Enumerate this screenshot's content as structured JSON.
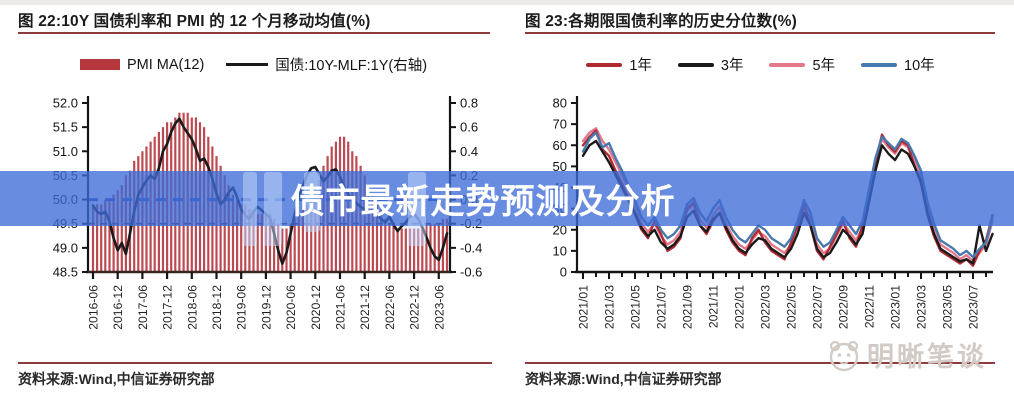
{
  "banner": {
    "text": "债市最新走势预测及分析",
    "bg_color": "rgba(62,108,214,0.78)",
    "text_color": "#ffffff"
  },
  "watermark": {
    "text": "明晰笔谈"
  },
  "left_panel": {
    "title": "图 22:10Y 国债利率和 PMI 的 12 个月移动均值(%)",
    "source": "资料来源:Wind,中信证券研究部"
  },
  "right_panel": {
    "title": "图 23:各期限国债利率的历史分位数(%)",
    "source": "资料来源:Wind,中信证券研究部"
  },
  "chart_data": [
    {
      "type": "bar",
      "title": "10Y 国债利率和 PMI 的 12 个月移动均值(%)",
      "x_tick_labels": [
        "2016-06",
        "2016-12",
        "2017-06",
        "2017-12",
        "2018-06",
        "2018-12",
        "2019-06",
        "2019-12",
        "2020-06",
        "2020-12",
        "2021-06",
        "2021-12",
        "2022-06",
        "2022-12",
        "2023-06"
      ],
      "left_axis": {
        "min": 48.5,
        "max": 52.0,
        "tick_labels": [
          "52.0",
          "51.5",
          "51.0",
          "50.5",
          "50.0",
          "49.5",
          "49.0",
          "48.5"
        ]
      },
      "right_axis": {
        "min": -0.6,
        "max": 0.8,
        "tick_labels": [
          "0.8",
          "0.6",
          "0.4",
          "0.2",
          "0.0",
          "-0.2",
          "-0.4",
          "-0.6"
        ]
      },
      "bars": {
        "name": "PMI MA(12)",
        "color": "#b5373e",
        "axis": "left",
        "values": [
          49.9,
          49.9,
          49.9,
          50.0,
          50.0,
          50.1,
          50.2,
          50.3,
          50.5,
          50.6,
          50.8,
          50.9,
          51.0,
          51.1,
          51.2,
          51.3,
          51.4,
          51.5,
          51.6,
          51.6,
          51.7,
          51.8,
          51.8,
          51.8,
          51.7,
          51.7,
          51.6,
          51.5,
          51.3,
          51.1,
          50.9,
          50.7,
          50.5,
          50.3,
          50.1,
          50.0,
          49.9,
          49.9,
          49.8,
          49.8,
          49.7,
          49.7,
          49.7,
          49.7,
          49.6,
          49.5,
          49.4,
          49.4,
          49.5,
          49.6,
          49.7,
          49.8,
          49.9,
          50.0,
          50.2,
          50.4,
          50.7,
          50.9,
          51.1,
          51.2,
          51.3,
          51.3,
          51.2,
          51.0,
          50.9,
          50.7,
          50.5,
          50.3,
          50.1,
          49.9,
          49.8,
          49.6,
          49.5,
          49.5,
          49.4,
          49.4,
          49.4,
          49.4,
          49.4,
          49.4,
          49.4,
          49.5,
          49.5,
          49.5,
          49.5,
          49.6,
          49.6
        ]
      },
      "line": {
        "name": "国债:10Y-MLF:1Y(右轴)",
        "color": "#1a1a1a",
        "axis": "right",
        "values": [
          -0.05,
          -0.1,
          -0.12,
          -0.1,
          -0.18,
          -0.32,
          -0.42,
          -0.36,
          -0.45,
          -0.28,
          -0.1,
          0.04,
          0.1,
          0.16,
          0.2,
          0.17,
          0.26,
          0.4,
          0.46,
          0.56,
          0.63,
          0.67,
          0.6,
          0.55,
          0.5,
          0.42,
          0.32,
          0.34,
          0.27,
          0.17,
          0.05,
          -0.04,
          0.0,
          0.06,
          0.1,
          0.02,
          -0.08,
          -0.13,
          -0.16,
          -0.1,
          -0.06,
          -0.09,
          -0.12,
          -0.15,
          -0.28,
          -0.42,
          -0.53,
          -0.44,
          -0.28,
          -0.12,
          0.02,
          0.12,
          0.2,
          0.26,
          0.27,
          0.21,
          0.15,
          0.19,
          0.24,
          0.25,
          0.19,
          0.11,
          0.04,
          0.0,
          -0.03,
          -0.06,
          -0.08,
          -0.11,
          -0.08,
          -0.13,
          -0.16,
          -0.19,
          -0.14,
          -0.21,
          -0.26,
          -0.22,
          -0.19,
          -0.14,
          -0.12,
          -0.16,
          -0.23,
          -0.31,
          -0.4,
          -0.47,
          -0.5,
          -0.4,
          -0.28
        ]
      },
      "reference_lines": [
        {
          "axis": "right",
          "value": 0.0,
          "color": "#2b55c0",
          "width": 3,
          "dash": "10 7"
        },
        {
          "axis": "right",
          "value": -0.2,
          "color": "#2a3a7a",
          "width": 1.6,
          "dash": "7 5"
        }
      ]
    },
    {
      "type": "line",
      "title": "各期限国债利率的历史分位数(%)",
      "x_tick_labels": [
        "2021/01",
        "2021/03",
        "2021/05",
        "2021/07",
        "2021/09",
        "2021/11",
        "2022/01",
        "2022/03",
        "2022/05",
        "2022/07",
        "2022/09",
        "2022/11",
        "2023/01",
        "2023/03",
        "2023/05",
        "2023/07"
      ],
      "y_axis": {
        "min": 0,
        "max": 80,
        "tick_labels": [
          "80",
          "70",
          "60",
          "50",
          "40",
          "30",
          "20",
          "10",
          "0"
        ]
      },
      "series": [
        {
          "name": "1年",
          "color": "#b02a33",
          "values": [
            60,
            64,
            67,
            58,
            55,
            48,
            42,
            35,
            27,
            20,
            16,
            24,
            18,
            10,
            12,
            16,
            30,
            33,
            22,
            18,
            24,
            28,
            20,
            14,
            10,
            8,
            16,
            20,
            14,
            10,
            8,
            6,
            14,
            22,
            32,
            22,
            10,
            6,
            12,
            18,
            24,
            16,
            12,
            22,
            38,
            52,
            65,
            60,
            57,
            62,
            60,
            50,
            42,
            27,
            17,
            10,
            8,
            6,
            4,
            6,
            3,
            10,
            15,
            27
          ]
        },
        {
          "name": "3年",
          "color": "#1a1a1a",
          "values": [
            55,
            60,
            62,
            57,
            52,
            46,
            40,
            34,
            28,
            21,
            17,
            20,
            14,
            11,
            13,
            17,
            26,
            29,
            22,
            19,
            25,
            28,
            21,
            15,
            11,
            9,
            13,
            16,
            15,
            11,
            9,
            7,
            11,
            18,
            28,
            22,
            11,
            7,
            9,
            14,
            20,
            17,
            13,
            18,
            33,
            48,
            60,
            56,
            53,
            58,
            56,
            50,
            43,
            28,
            18,
            11,
            9,
            7,
            5,
            6,
            4,
            22,
            10,
            18
          ]
        },
        {
          "name": "5年",
          "color": "#e4798a",
          "values": [
            62,
            66,
            68,
            62,
            58,
            52,
            46,
            39,
            31,
            23,
            19,
            23,
            17,
            13,
            15,
            19,
            29,
            32,
            25,
            21,
            27,
            31,
            23,
            17,
            13,
            11,
            15,
            19,
            17,
            13,
            11,
            9,
            13,
            21,
            31,
            25,
            13,
            9,
            11,
            17,
            23,
            19,
            15,
            21,
            36,
            51,
            63,
            59,
            56,
            61,
            59,
            53,
            46,
            31,
            21,
            13,
            11,
            9,
            6,
            8,
            5,
            9,
            13,
            24
          ]
        },
        {
          "name": "10年",
          "color": "#4679ad",
          "values": [
            57,
            63,
            66,
            59,
            61,
            54,
            48,
            41,
            34,
            26,
            22,
            26,
            20,
            16,
            18,
            22,
            32,
            35,
            28,
            24,
            30,
            34,
            26,
            20,
            16,
            14,
            18,
            22,
            20,
            16,
            14,
            12,
            16,
            24,
            34,
            28,
            16,
            12,
            14,
            20,
            26,
            22,
            18,
            24,
            39,
            54,
            64,
            61,
            58,
            63,
            61,
            55,
            48,
            33,
            23,
            15,
            13,
            11,
            8,
            10,
            7,
            11,
            14,
            26
          ]
        }
      ]
    }
  ]
}
